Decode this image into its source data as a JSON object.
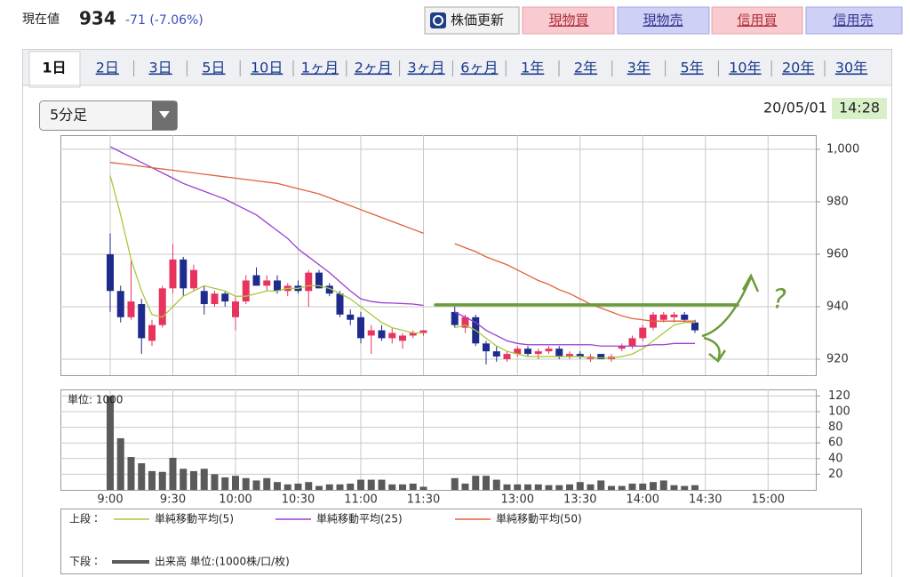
{
  "header": {
    "label": "現在値",
    "price": "934",
    "change": "-71 (-7.06%)"
  },
  "buttons": [
    "株価更新",
    "現物買",
    "現物売",
    "信用買",
    "信用売"
  ],
  "tabs": [
    "1日",
    "2日",
    "3日",
    "5日",
    "10日",
    "1ヶ月",
    "2ヶ月",
    "3ヶ月",
    "6ヶ月",
    "1年",
    "2年",
    "3年",
    "5年",
    "10年",
    "20年",
    "30年"
  ],
  "interval": "5分足",
  "date": "20/05/01",
  "time": "14:28",
  "legend": {
    "upper": "上段：",
    "lower": "下段："
  },
  "chart_data": [
    {
      "type": "candlestick",
      "ylim": [
        913.9,
        1005.4
      ],
      "yticks": [
        {
          "value": 1000,
          "label": "1,000"
        },
        980,
        960,
        940,
        920
      ],
      "grid": true,
      "up_color": "#e8335f",
      "down_color": "#1e2b8c",
      "open": [
        960,
        946,
        936,
        941,
        927,
        933,
        947,
        958,
        947,
        946,
        941,
        945,
        936,
        942,
        952,
        948,
        950,
        946,
        948,
        946,
        953,
        948,
        945,
        937,
        936,
        929,
        931,
        928,
        927,
        929,
        930,
        null,
        null,
        938,
        932,
        936,
        926,
        923,
        920,
        922,
        924,
        922,
        923,
        924,
        921,
        922,
        920,
        922,
        920,
        924,
        925,
        928,
        932,
        935,
        936,
        937,
        934,
        null,
        null,
        null,
        null,
        null,
        null,
        null
      ],
      "high": [
        968,
        948,
        958,
        943,
        935,
        948,
        964,
        959,
        956,
        948,
        946,
        946,
        944,
        952,
        955,
        952,
        952,
        949,
        950,
        954,
        954,
        949,
        946,
        939,
        938,
        933,
        933,
        932,
        930,
        931,
        931,
        null,
        null,
        940,
        937,
        937,
        927,
        925,
        923,
        925,
        925,
        924,
        925,
        925,
        923,
        923,
        922,
        922,
        922,
        926,
        929,
        933,
        938,
        938,
        938,
        938,
        935,
        null,
        null,
        null,
        null,
        null,
        null,
        null
      ],
      "low": [
        938,
        934,
        935,
        922,
        925,
        932,
        945,
        944,
        946,
        937,
        940,
        940,
        931,
        941,
        948,
        946,
        945,
        944,
        945,
        940,
        947,
        944,
        936,
        933,
        926,
        922,
        927,
        926,
        924,
        928,
        929,
        null,
        null,
        932,
        930,
        925,
        918,
        919,
        919,
        921,
        921,
        920,
        922,
        920,
        920,
        920,
        919,
        920,
        919,
        923,
        924,
        927,
        931,
        934,
        934,
        934,
        930,
        null,
        null,
        null,
        null,
        null,
        null,
        null
      ],
      "close": [
        946,
        936,
        942,
        928,
        933,
        947,
        958,
        947,
        954,
        941,
        945,
        942,
        942,
        950,
        948,
        950,
        946,
        948,
        946,
        953,
        947,
        945,
        937,
        935,
        928,
        931,
        928,
        930,
        929,
        930,
        931,
        null,
        null,
        933,
        936,
        926,
        923,
        921,
        922,
        924,
        922,
        923,
        924,
        921,
        922,
        921,
        921,
        920,
        921,
        925,
        928,
        932,
        937,
        937,
        937,
        935,
        931,
        null,
        null,
        null,
        null,
        null,
        null,
        null
      ],
      "series": [
        {
          "name": "単純移動平均(5)",
          "color": "#a9c83c",
          "values": [
            990,
            975,
            958,
            946,
            937,
            936,
            940,
            944,
            946,
            948,
            947,
            946,
            944,
            944,
            945,
            946,
            946,
            947,
            947,
            948,
            948,
            947,
            945,
            943,
            940,
            937,
            934,
            932,
            931,
            930,
            930,
            null,
            null,
            932,
            933,
            931,
            928,
            925,
            923,
            922,
            921,
            921,
            921,
            921,
            921,
            921,
            920.5,
            920.5,
            920.5,
            921,
            922,
            924,
            927,
            930,
            933,
            934,
            934,
            null,
            null,
            null,
            null,
            null,
            null,
            null
          ]
        },
        {
          "name": "単純移動平均(25)",
          "color": "#9a3fd2",
          "values": [
            1001,
            999,
            997,
            995,
            993,
            991,
            989,
            987,
            985.5,
            984,
            982.5,
            981,
            979,
            977,
            975,
            972,
            969,
            966,
            962,
            959,
            956,
            953,
            949.5,
            946,
            943,
            942,
            941.5,
            941.4,
            941.2,
            941,
            940.5,
            null,
            null,
            938,
            936,
            934,
            931,
            929,
            927,
            926,
            925.5,
            925.5,
            925.5,
            925.5,
            925.5,
            925.5,
            925.5,
            925,
            925,
            925,
            925,
            925,
            925.5,
            925.5,
            926,
            926,
            926,
            null,
            null,
            null,
            null,
            null,
            null,
            null
          ]
        },
        {
          "name": "単純移動平均(50)",
          "color": "#e0623c",
          "values": [
            995,
            994.5,
            994,
            993.5,
            993,
            992.5,
            992,
            991.5,
            991,
            990.5,
            990,
            989.5,
            989,
            988.5,
            988,
            987.5,
            987,
            986,
            985,
            984,
            983,
            981.5,
            980,
            978.5,
            977,
            975.5,
            974,
            972.5,
            971,
            969.5,
            968,
            null,
            null,
            964,
            962.5,
            961,
            959,
            957.5,
            956,
            954,
            952,
            950,
            948.5,
            946.5,
            945,
            943,
            941,
            939.5,
            938,
            936.5,
            935.5,
            935,
            934.5,
            934.5,
            934.5,
            934.5,
            934.5,
            null,
            null,
            null,
            null,
            null,
            null,
            null
          ]
        }
      ],
      "hline": {
        "value": 940.7,
        "color": "#6c9c3a"
      },
      "annotation": "?"
    },
    {
      "type": "bar",
      "unit_label": "単位: 1000",
      "name": "出来高 単位:(1000株/口/枚)",
      "color": "#5a5a5a",
      "ylim": [
        0,
        128.4
      ],
      "yticks": [
        20,
        40,
        60,
        80,
        100,
        120
      ],
      "grid": true,
      "categories": [
        "9:00",
        null,
        null,
        null,
        null,
        null,
        "9:30",
        null,
        null,
        null,
        null,
        null,
        "10:00",
        null,
        null,
        null,
        null,
        null,
        "10:30",
        null,
        null,
        null,
        null,
        null,
        "11:00",
        null,
        null,
        null,
        null,
        null,
        "11:30",
        null,
        null,
        null,
        null,
        null,
        null,
        null,
        null,
        "13:00",
        null,
        null,
        null,
        null,
        null,
        "13:30",
        null,
        null,
        null,
        null,
        null,
        "14:00",
        null,
        null,
        null,
        null,
        null,
        "14:30",
        null,
        null,
        null,
        null,
        null,
        "15:00"
      ],
      "values": [
        120,
        66,
        42,
        34,
        24,
        23,
        41,
        27,
        24,
        27,
        20,
        16,
        18,
        15,
        12,
        15,
        10,
        7,
        8,
        10,
        5,
        7,
        7,
        8,
        13,
        13,
        13,
        7,
        7,
        8,
        4,
        null,
        null,
        15,
        8,
        18,
        18,
        13,
        7,
        7,
        7,
        7,
        6,
        6,
        7,
        10,
        7,
        12,
        5,
        5,
        8,
        8,
        10,
        12,
        6,
        5,
        6,
        null,
        null,
        null,
        null,
        null,
        null,
        null
      ]
    }
  ]
}
